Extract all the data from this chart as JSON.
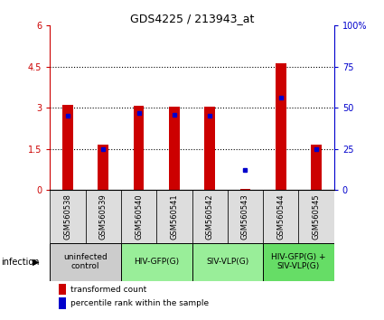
{
  "title": "GDS4225 / 213943_at",
  "samples": [
    "GSM560538",
    "GSM560539",
    "GSM560540",
    "GSM560541",
    "GSM560542",
    "GSM560543",
    "GSM560544",
    "GSM560545"
  ],
  "transformed_counts": [
    3.1,
    1.65,
    3.07,
    3.03,
    3.05,
    0.03,
    4.62,
    1.67
  ],
  "percentile_ranks": [
    45,
    25,
    47,
    46,
    45,
    12,
    56,
    25
  ],
  "ylim_left": [
    0,
    6
  ],
  "ylim_right": [
    0,
    100
  ],
  "yticks_left": [
    0,
    1.5,
    3.0,
    4.5,
    6.0
  ],
  "yticks_right": [
    0,
    25,
    50,
    75,
    100
  ],
  "yticklabels_left": [
    "0",
    "1.5",
    "3",
    "4.5",
    "6"
  ],
  "yticklabels_right": [
    "0",
    "25",
    "50",
    "75",
    "100%"
  ],
  "left_tick_color": "#cc0000",
  "right_tick_color": "#0000cc",
  "bar_color": "#cc0000",
  "dot_color": "#0000cc",
  "groups": [
    {
      "label": "uninfected\ncontrol",
      "start": 0,
      "end": 2,
      "color": "#cccccc"
    },
    {
      "label": "HIV-GFP(G)",
      "start": 2,
      "end": 4,
      "color": "#99ee99"
    },
    {
      "label": "SIV-VLP(G)",
      "start": 4,
      "end": 6,
      "color": "#99ee99"
    },
    {
      "label": "HIV-GFP(G) +\nSIV-VLP(G)",
      "start": 6,
      "end": 8,
      "color": "#66dd66"
    }
  ],
  "infection_label": "infection",
  "legend_bar_label": "transformed count",
  "legend_dot_label": "percentile rank within the sample",
  "tick_label_fontsize": 7,
  "title_fontsize": 9,
  "sample_label_fontsize": 6.0,
  "group_label_fontsize": 6.5,
  "bar_width": 0.3
}
